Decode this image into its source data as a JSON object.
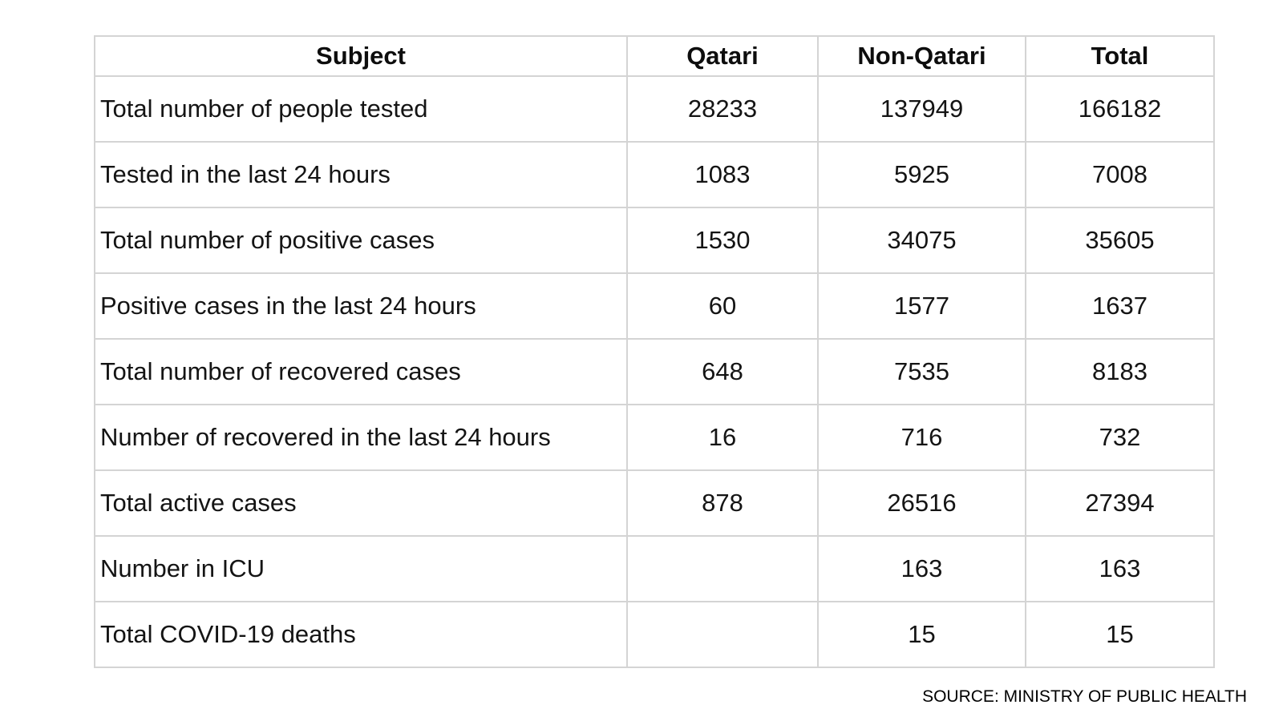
{
  "table": {
    "headers": {
      "subject": "Subject",
      "qatari": "Qatari",
      "non_qatari": "Non-Qatari",
      "total": "Total"
    },
    "rows": [
      {
        "subject": "Total number of people tested",
        "qatari": "28233",
        "non_qatari": "137949",
        "total": "166182"
      },
      {
        "subject": "Tested in the last 24 hours",
        "qatari": "1083",
        "non_qatari": "5925",
        "total": "7008"
      },
      {
        "subject": "Total number of positive cases",
        "qatari": "1530",
        "non_qatari": "34075",
        "total": "35605"
      },
      {
        "subject": "Positive cases in the last 24 hours",
        "qatari": "60",
        "non_qatari": "1577",
        "total": "1637"
      },
      {
        "subject": "Total number of recovered cases",
        "qatari": "648",
        "non_qatari": "7535",
        "total": "8183"
      },
      {
        "subject": "Number of recovered in the last 24 hours",
        "qatari": "16",
        "non_qatari": "716",
        "total": "732"
      },
      {
        "subject": "Total active cases",
        "qatari": "878",
        "non_qatari": "26516",
        "total": "27394"
      },
      {
        "subject": "Number in ICU",
        "qatari": "",
        "non_qatari": "163",
        "total": "163"
      },
      {
        "subject": "Total COVID-19 deaths",
        "qatari": "",
        "non_qatari": "15",
        "total": "15"
      }
    ]
  },
  "source": "SOURCE: MINISTRY OF PUBLIC HEALTH"
}
